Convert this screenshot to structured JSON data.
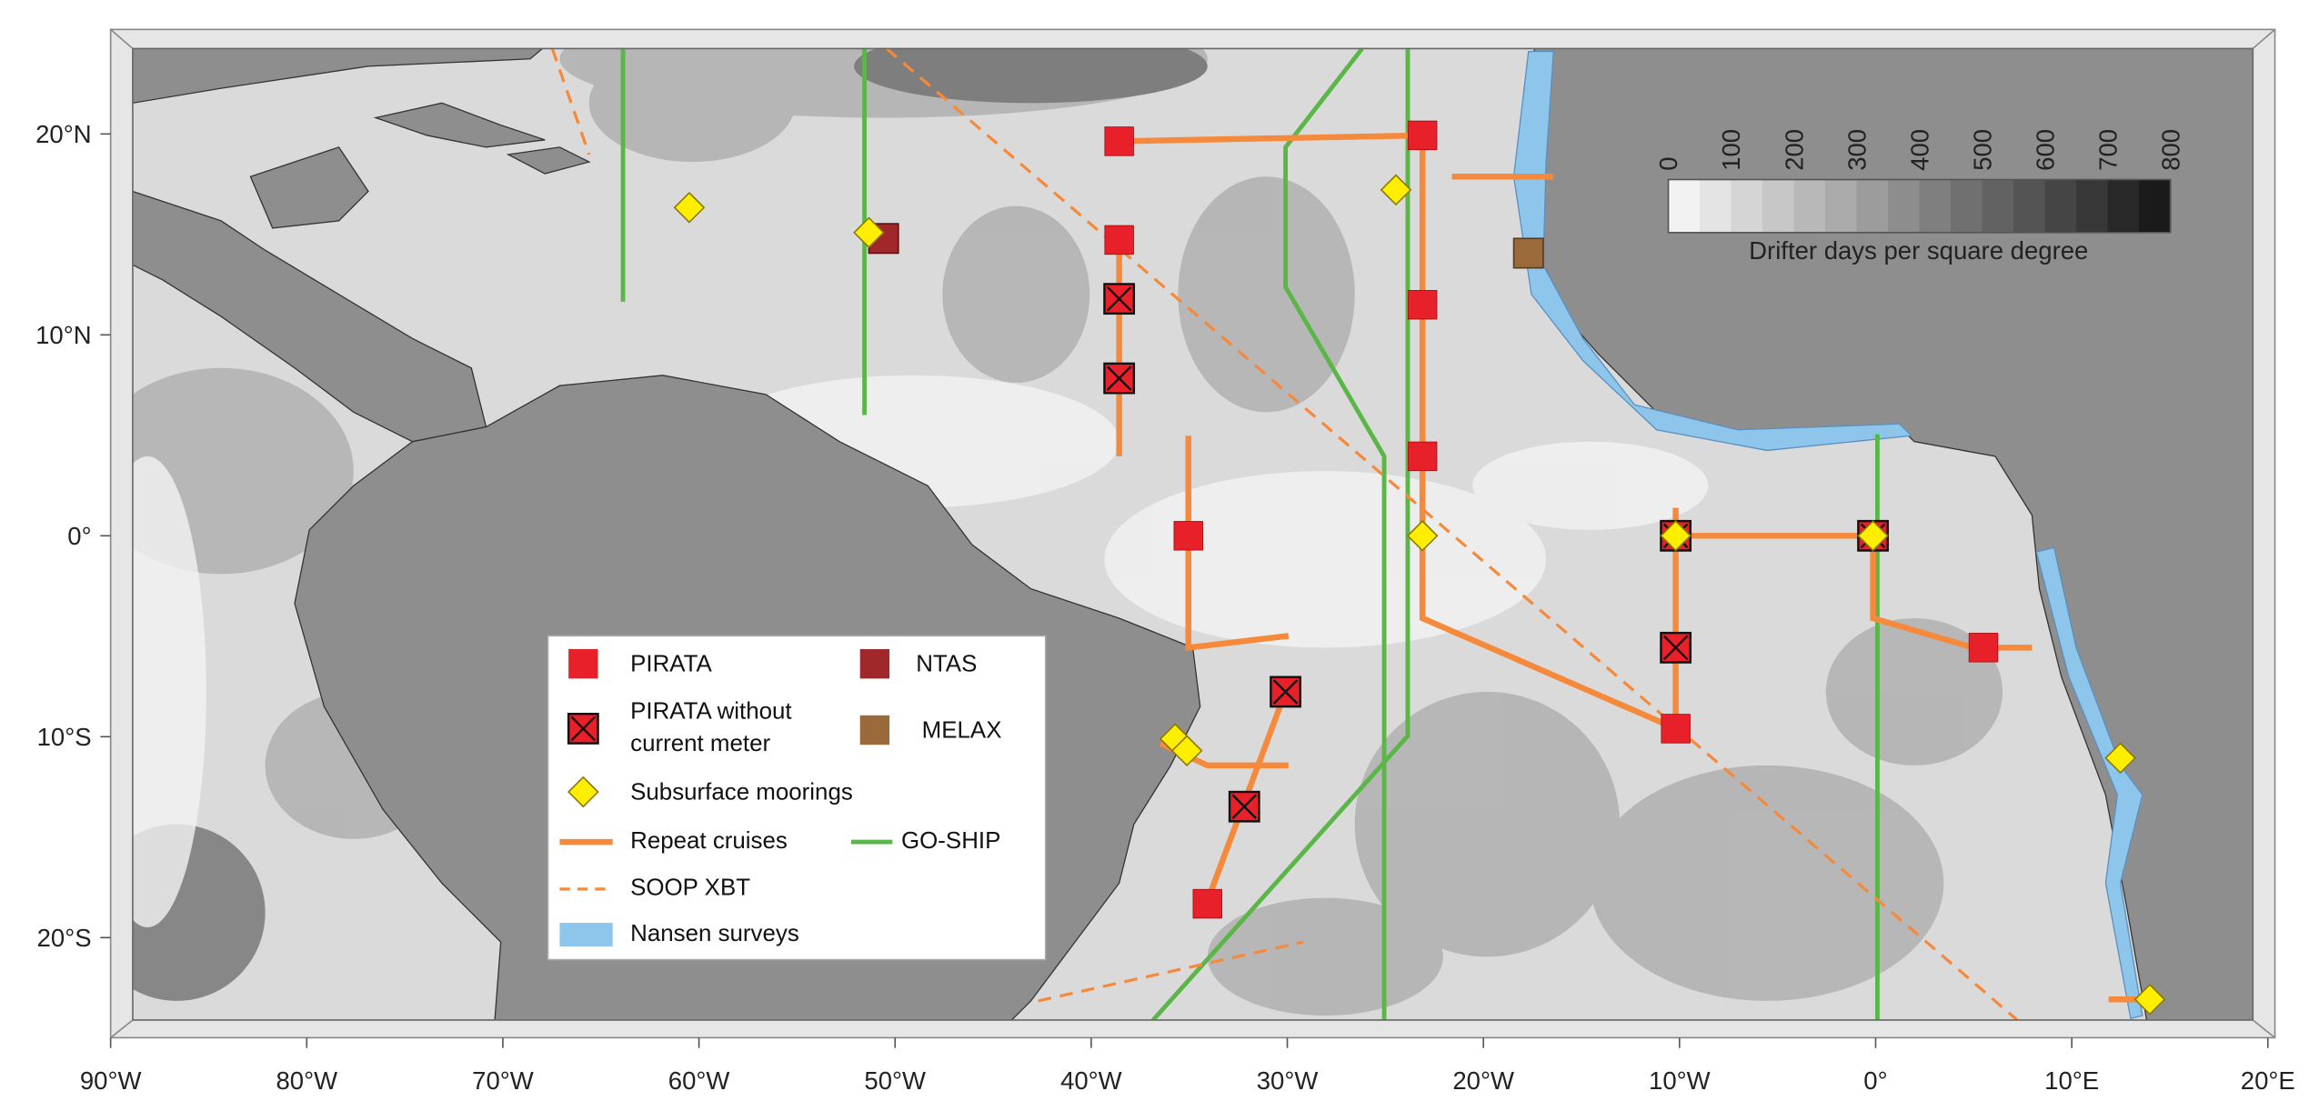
{
  "map": {
    "x_ticks": [
      "90°W",
      "80°W",
      "70°W",
      "60°W",
      "50°W",
      "40°W",
      "30°W",
      "20°W",
      "10°W",
      "0°",
      "10°E",
      "20°E"
    ],
    "y_ticks": [
      "20°N",
      "10°N",
      "0°",
      "10°S",
      "20°S"
    ],
    "colorbar": {
      "ticks": [
        0,
        100,
        200,
        300,
        400,
        500,
        600,
        700,
        800
      ],
      "label": "Drifter days per square degree"
    },
    "legend": {
      "pirata": "PIRATA",
      "ntas": "NTAS",
      "pirata_no_meter": [
        "PIRATA without",
        "current meter"
      ],
      "melax": "MELAX",
      "subsurface": "Subsurface moorings",
      "repeat": "Repeat cruises",
      "goship": "GO-SHIP",
      "soop": "SOOP XBT",
      "nansen": "Nansen surveys"
    }
  }
}
